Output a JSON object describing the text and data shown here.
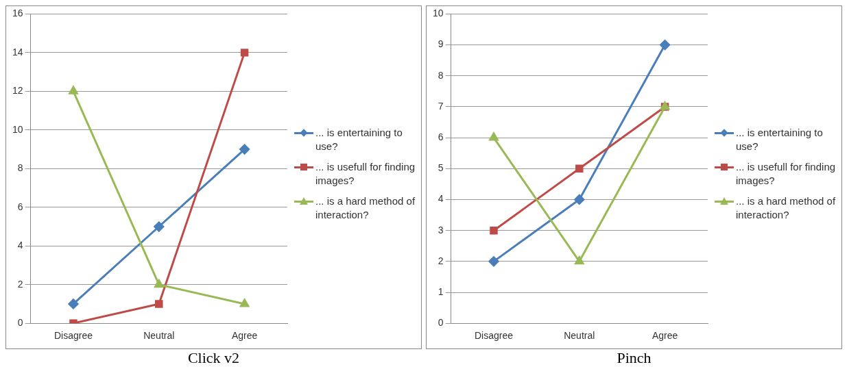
{
  "chart_data": [
    {
      "type": "line",
      "title": "Click v2",
      "categories": [
        "Disagree",
        "Neutral",
        "Agree"
      ],
      "ylim": [
        0,
        16
      ],
      "yticks": [
        0,
        2,
        4,
        6,
        8,
        10,
        12,
        14,
        16
      ],
      "grid": "y",
      "legend": "right",
      "series": [
        {
          "name": "... is entertaining to use?",
          "color": "#4a7ebb",
          "marker": "diamond",
          "values": [
            1,
            5,
            9
          ]
        },
        {
          "name": "... is usefull for finding images?",
          "color": "#be4b48",
          "marker": "square",
          "values": [
            0,
            1,
            14
          ]
        },
        {
          "name": "... is a hard method of interaction?",
          "color": "#98b954",
          "marker": "triangle",
          "values": [
            12,
            2,
            1
          ]
        }
      ]
    },
    {
      "type": "line",
      "title": "Pinch",
      "categories": [
        "Disagree",
        "Neutral",
        "Agree"
      ],
      "ylim": [
        0,
        10
      ],
      "yticks": [
        0,
        1,
        2,
        3,
        4,
        5,
        6,
        7,
        8,
        9,
        10
      ],
      "grid": "y",
      "legend": "right",
      "series": [
        {
          "name": "... is entertaining to use?",
          "color": "#4a7ebb",
          "marker": "diamond",
          "values": [
            2,
            4,
            9
          ]
        },
        {
          "name": "... is usefull for finding images?",
          "color": "#be4b48",
          "marker": "square",
          "values": [
            3,
            5,
            7
          ]
        },
        {
          "name": "... is a hard method of interaction?",
          "color": "#98b954",
          "marker": "triangle",
          "values": [
            6,
            2,
            7
          ]
        }
      ]
    }
  ]
}
